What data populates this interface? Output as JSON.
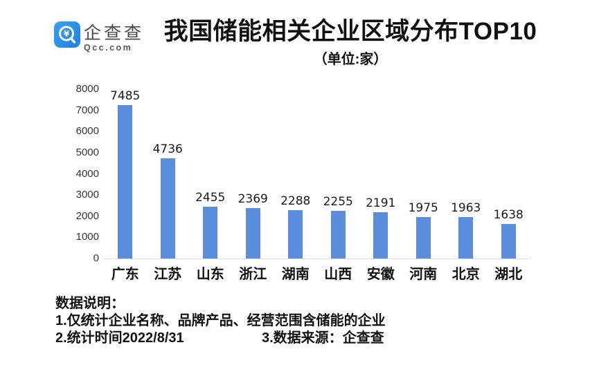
{
  "header": {
    "logo": {
      "brand_cn": "企查查",
      "brand_en": "Qcc.com",
      "brand_color": "#2489E6"
    },
    "title": "我国储能相关企业区域分布TOP10",
    "subtitle": "（单位:家）"
  },
  "chart_data": {
    "type": "bar",
    "title": "我国储能相关企业区域分布TOP10",
    "unit_label": "（单位:家）",
    "categories": [
      "广东",
      "江苏",
      "山东",
      "浙江",
      "湖南",
      "山西",
      "安徽",
      "河南",
      "北京",
      "湖北"
    ],
    "values": [
      7485,
      4736,
      2455,
      2369,
      2288,
      2255,
      2191,
      1975,
      1963,
      1638
    ],
    "xlabel": "",
    "ylabel": "",
    "ylim": [
      0,
      8000
    ],
    "yticks": [
      0,
      1000,
      2000,
      3000,
      4000,
      5000,
      6000,
      7000,
      8000
    ],
    "grid": false,
    "legend": null,
    "bar_color": "#5A8EDC",
    "axis_line_color": "#dedede"
  },
  "notes": {
    "heading": "数据说明：",
    "line1": "1.仅统计企业名称、品牌产品、经营范围含储能的企业",
    "line2a": "2.统计时间2022/8/31",
    "line2b": "3.数据来源：企查查"
  }
}
